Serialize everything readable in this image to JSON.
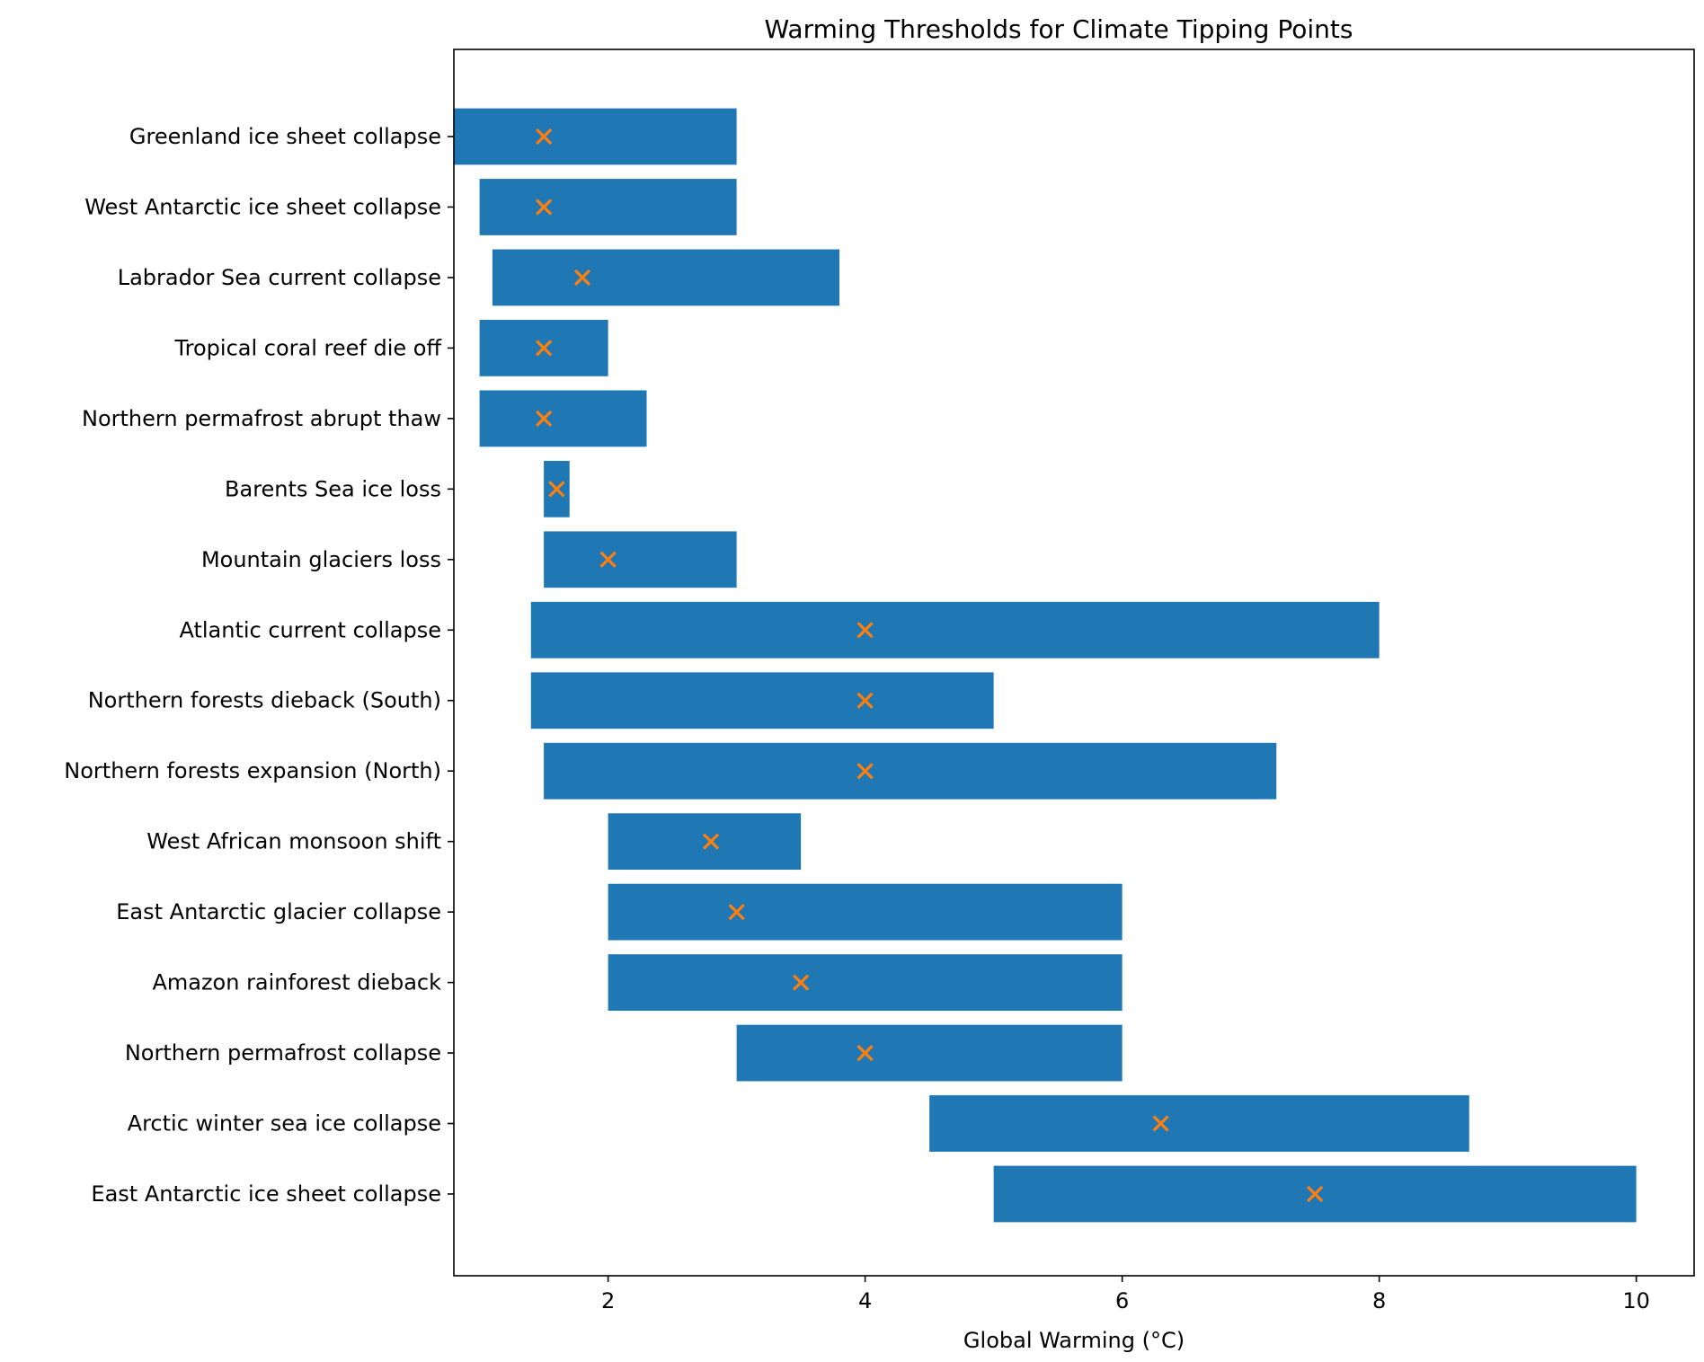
{
  "chart_data": {
    "type": "bar",
    "title": "Warming Thresholds for Climate Tipping Points",
    "xlabel": "Global Warming (°C)",
    "ylabel": "",
    "xlim": [
      0.8,
      10.45
    ],
    "xticks": [
      2,
      4,
      6,
      8,
      10
    ],
    "grid": false,
    "legend": "none",
    "colors": {
      "bar": "#1f77b4",
      "marker": "#ff7f0e"
    },
    "categories": [
      "Greenland ice sheet collapse",
      "West Antarctic ice sheet collapse",
      "Labrador Sea current collapse",
      "Tropical coral reef die off",
      "Northern permafrost abrupt thaw",
      "Barents Sea ice loss",
      "Mountain glaciers loss",
      "Atlantic current collapse",
      "Northern forests dieback (South)",
      "Northern forests expansion (North)",
      "West African monsoon shift",
      "East Antarctic glacier collapse",
      "Amazon rainforest dieback",
      "Northern permafrost collapse",
      "Arctic winter sea ice collapse",
      "East Antarctic ice sheet collapse"
    ],
    "series": [
      {
        "values_min": [
          0.8,
          1.0,
          1.1,
          1.0,
          1.0,
          1.5,
          1.5,
          1.4,
          1.4,
          1.5,
          2.0,
          2.0,
          2.0,
          3.0,
          4.5,
          5.0
        ]
      },
      {
        "values_max": [
          3.0,
          3.0,
          3.8,
          2.0,
          2.3,
          1.7,
          3.0,
          8.0,
          5.0,
          7.2,
          3.5,
          6.0,
          6.0,
          6.0,
          8.7,
          10.0
        ]
      },
      {
        "values_estimate": [
          1.5,
          1.5,
          1.8,
          1.5,
          1.5,
          1.6,
          2.0,
          4.0,
          4.0,
          4.0,
          2.8,
          3.0,
          3.5,
          4.0,
          6.3,
          7.5
        ]
      }
    ]
  }
}
